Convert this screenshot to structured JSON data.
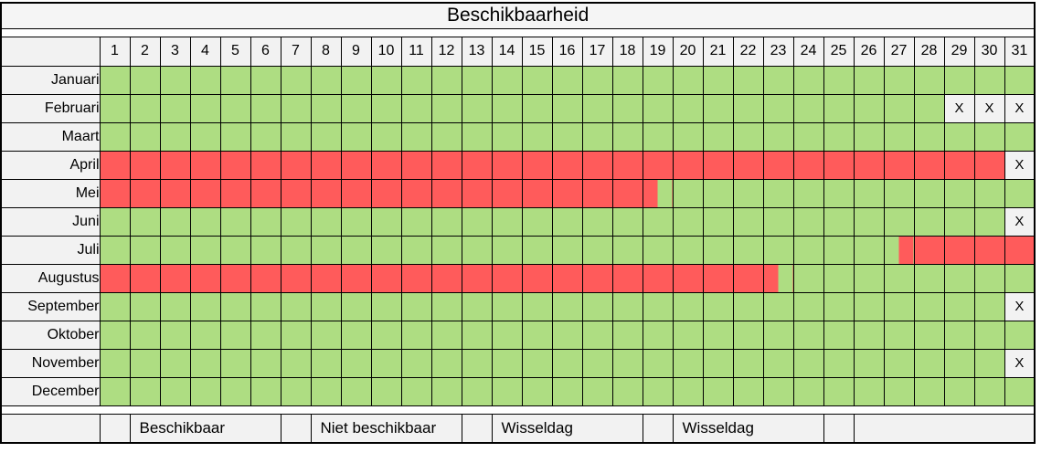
{
  "title": "Beschikbaarheid",
  "x_marker": "X",
  "colors": {
    "available_green": "#aedd82",
    "unavailable_red": "#ff5b5b",
    "neutral_cell_bg": "#f2f2f2",
    "border": "#000000"
  },
  "legend": {
    "entries": [
      {
        "swatch": "G",
        "label": "Beschikbaar"
      },
      {
        "swatch": "R",
        "label": "Niet beschikbaar"
      },
      {
        "swatch": "A",
        "label": "Wisseldag"
      },
      {
        "swatch": "B",
        "label": "Wisseldag"
      }
    ]
  },
  "chart_data": {
    "type": "heatmap",
    "title": "Beschikbaarheid",
    "x_tick_labels": [
      1,
      2,
      3,
      4,
      5,
      6,
      7,
      8,
      9,
      10,
      11,
      12,
      13,
      14,
      15,
      16,
      17,
      18,
      19,
      20,
      21,
      22,
      23,
      24,
      25,
      26,
      27,
      28,
      29,
      30,
      31
    ],
    "y_tick_labels": [
      "Januari",
      "Februari",
      "Maart",
      "April",
      "Mei",
      "Juni",
      "Juli",
      "Augustus",
      "September",
      "Oktober",
      "November",
      "December"
    ],
    "codes": {
      "G": "Beschikbaar (groen)",
      "R": "Niet beschikbaar (rood)",
      "A": "Wisseldag groen-naar-rood (linkerhelft groen, rechterhelft rood)",
      "B": "Wisseldag rood-naar-groen (linkerhelft rood, rechterhelft groen)",
      "X": "Dag bestaat niet (X)"
    },
    "cells": [
      "GGGGGGGGGGGGGGGGGGGGGGGGGGGGGGG",
      "GGGGGGGGGGGGGGGGGGGGGGGGGGGGXXX",
      "GGGGGGGGGGGGGGGGGGGGGGGGGGGGGGG",
      "RRRRRRRRRRRRRRRRRRRRRRRRRRRRRRX",
      "RRRRRRRRRRRRRRRRRRBGGGGGGGGGGGG",
      "GGGGGGGGGGGGGGGGGGGGGGGGGGGGGGX",
      "GGGGGGGGGGGGGGGGGGGGGGGGGGARRRR",
      "RRRRRRRRRRRRRRRRRRRRRRBGGGGGGGG",
      "GGGGGGGGGGGGGGGGGGGGGGGGGGGGGGX",
      "GGGGGGGGGGGGGGGGGGGGGGGGGGGGGGG",
      "GGGGGGGGGGGGGGGGGGGGGGGGGGGGGGX",
      "GGGGGGGGGGGGGGGGGGGGGGGGGGGGGGG"
    ]
  }
}
